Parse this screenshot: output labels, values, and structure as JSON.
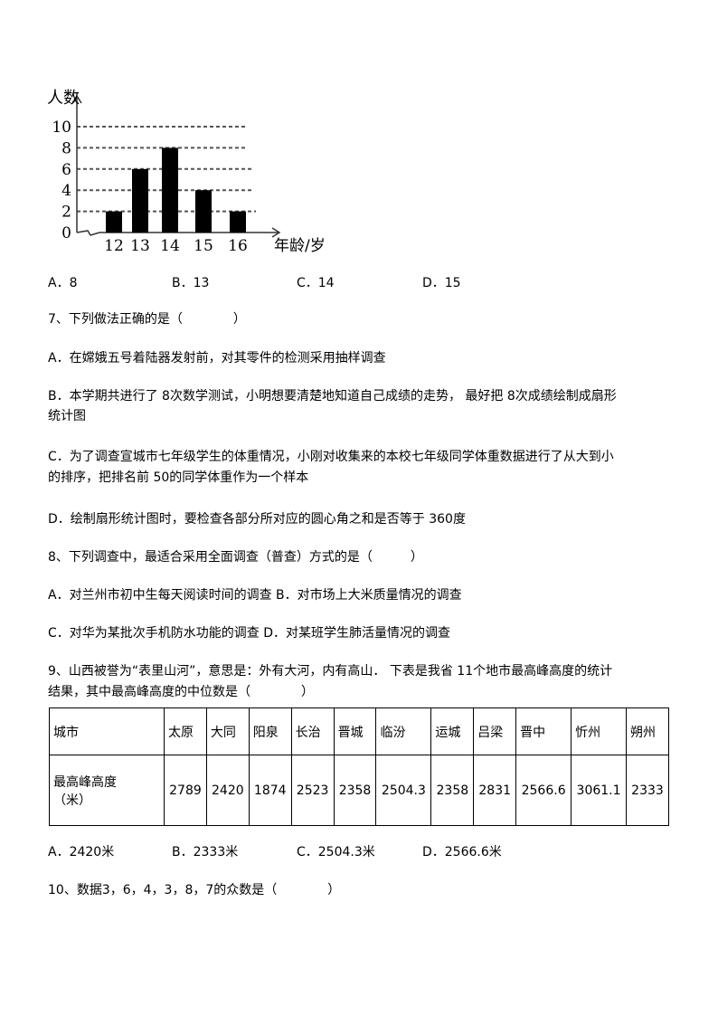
{
  "chart_data": {
    "type": "bar",
    "categories": [
      "12",
      "13",
      "14",
      "15",
      "16"
    ],
    "values": [
      2,
      6,
      8,
      4,
      2
    ],
    "xlabel": "年龄/岁",
    "ylabel": "人数",
    "yticks": [
      "0",
      "2",
      "4",
      "6",
      "8",
      "10"
    ],
    "ylim": [
      0,
      10
    ],
    "grid": "dashed horizontal",
    "bar_color": "#000000"
  },
  "q6_options": [
    "A．8",
    "B．13",
    "C．14",
    "D．15"
  ],
  "q7": {
    "stem": "7、下列做法正确的是（　　　　）",
    "A": "A．在嫦娥五号着陆器发射前，对其零件的检测采用抽样调查",
    "B1": "B．本学期共进行了 8次数学测试，小明想要清楚地知道自己成绩的走势， 最好把 8次成绩绘制成扇形",
    "B2": "统计图",
    "C1": "C．为了调查宣城市七年级学生的体重情况，小刚对收集来的本校七年级同学体重数据进行了从大到小",
    "C2": "的排序，把排名前 50的同学体重作为一个样本",
    "D": "D．绘制扇形统计图时，要检查各部分所对应的圆心角之和是否等于  360度"
  },
  "q8": {
    "stem": "8、下列调查中，最适合采用全面调查（普查）方式的是（　　　）",
    "AB": "A．对兰州市初中生每天阅读时间的调查  B．对市场上大米质量情况的调查",
    "CD": "C．对华为某批次手机防水功能的调查     D．对某班学生肺活量情况的调查"
  },
  "q9": {
    "stem1": "9、山西被誉为“表里山河”，意思是：外有大河，内有高山． 下表是我省 11个地市最高峰高度的统计",
    "stem2": "结果，其中最高峰高度的中位数是（　　　　）",
    "table": {
      "row_header_1": "城市",
      "row_header_2a": "最高峰高度",
      "row_header_2b": "（米）",
      "cities": [
        "太原",
        "大同",
        "阳泉",
        "长治",
        "晋城",
        "临汾",
        "运城",
        "吕梁",
        "晋中",
        "忻州",
        "朔州"
      ],
      "heights": [
        "2789",
        "2420",
        "1874",
        "2523",
        "2358",
        "2504.3",
        "2358",
        "2831",
        "2566.6",
        "3061.1",
        "2333"
      ]
    },
    "options": [
      "A．2420米",
      "B．2333米",
      "C．2504.3米",
      "D．2566.6米"
    ]
  },
  "q10": {
    "stem": "10、数据3，6，4，3，8，7的众数是（　　　　）"
  }
}
